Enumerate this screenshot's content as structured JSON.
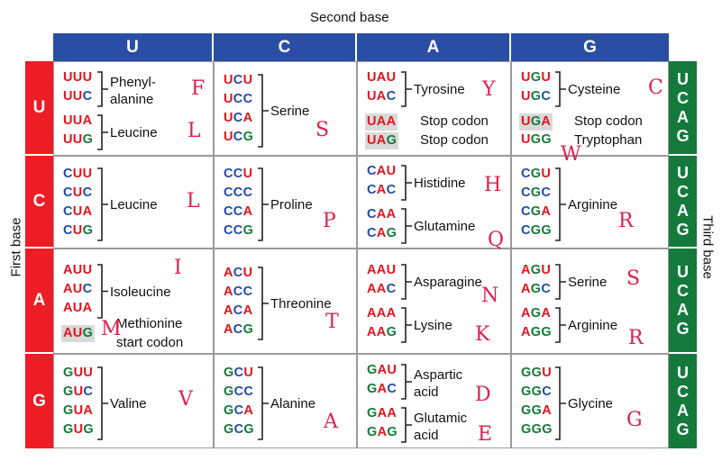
{
  "labels": {
    "second_base": "Second base",
    "first_base": "First base",
    "third_base": "Third base"
  },
  "second_bases": [
    "U",
    "C",
    "A",
    "G"
  ],
  "first_bases": [
    "U",
    "C",
    "A",
    "G"
  ],
  "third_bases": [
    "U",
    "C",
    "A",
    "G"
  ],
  "colors": {
    "U": "#e3141e",
    "C": "#1f4aa8",
    "A": "#e3141e",
    "G": "#147a3a"
  },
  "cells": [
    [
      {
        "groups": [
          {
            "codons": [
              "UUU",
              "UUC"
            ],
            "label": [
              "Phenyl-",
              "alanine"
            ],
            "bracket": true
          },
          {
            "codons": [
              "UUA",
              "UUG"
            ],
            "label": [
              "Leucine"
            ],
            "bracket": true
          }
        ],
        "letters": [
          "F",
          "L"
        ]
      },
      {
        "groups": [
          {
            "codons": [
              "UCU",
              "UCC",
              "UCA",
              "UCG"
            ],
            "label": [
              "Serine"
            ],
            "bracket": true
          }
        ],
        "letters": [
          "S"
        ]
      },
      {
        "groups": [
          {
            "codons": [
              "UAU",
              "UAC"
            ],
            "label": [
              "Tyrosine"
            ],
            "bracket": true
          },
          {
            "codons": [
              "UAA",
              "UAG"
            ],
            "label": [
              "Stop codon",
              "Stop codon"
            ],
            "bracket": false,
            "highlight": [
              true,
              true
            ]
          }
        ],
        "letters": [
          "Y"
        ]
      },
      {
        "groups": [
          {
            "codons": [
              "UGU",
              "UGC"
            ],
            "label": [
              "Cysteine"
            ],
            "bracket": true
          },
          {
            "codons": [
              "UGA",
              "UGG"
            ],
            "label": [
              "Stop codon",
              "Tryptophan"
            ],
            "bracket": false,
            "highlight": [
              true,
              false
            ]
          }
        ],
        "letters": [
          "C",
          "W"
        ]
      }
    ],
    [
      {
        "groups": [
          {
            "codons": [
              "CUU",
              "CUC",
              "CUA",
              "CUG"
            ],
            "label": [
              "Leucine"
            ],
            "bracket": true
          }
        ],
        "letters": [
          "L"
        ]
      },
      {
        "groups": [
          {
            "codons": [
              "CCU",
              "CCC",
              "CCA",
              "CCG"
            ],
            "label": [
              "Proline"
            ],
            "bracket": true
          }
        ],
        "letters": [
          "P"
        ]
      },
      {
        "groups": [
          {
            "codons": [
              "CAU",
              "CAC"
            ],
            "label": [
              "Histidine"
            ],
            "bracket": true
          },
          {
            "codons": [
              "CAA",
              "CAG"
            ],
            "label": [
              "Glutamine"
            ],
            "bracket": true
          }
        ],
        "letters": [
          "H",
          "Q"
        ]
      },
      {
        "groups": [
          {
            "codons": [
              "CGU",
              "CGC",
              "CGA",
              "CGG"
            ],
            "label": [
              "Arginine"
            ],
            "bracket": true
          }
        ],
        "letters": [
          "R"
        ]
      }
    ],
    [
      {
        "groups": [
          {
            "codons": [
              "AUU",
              "AUC",
              "AUA"
            ],
            "label": [
              "Isoleucine"
            ],
            "bracket": true
          },
          {
            "codons": [
              "AUG"
            ],
            "label": [
              "Methionine",
              "start codon"
            ],
            "bracket": false,
            "highlight": [
              true
            ]
          }
        ],
        "letters": [
          "I",
          "M"
        ]
      },
      {
        "groups": [
          {
            "codons": [
              "ACU",
              "ACC",
              "ACA",
              "ACG"
            ],
            "label": [
              "Threonine"
            ],
            "bracket": true
          }
        ],
        "letters": [
          "T"
        ]
      },
      {
        "groups": [
          {
            "codons": [
              "AAU",
              "AAC"
            ],
            "label": [
              "Asparagine"
            ],
            "bracket": true
          },
          {
            "codons": [
              "AAA",
              "AAG"
            ],
            "label": [
              "Lysine"
            ],
            "bracket": true
          }
        ],
        "letters": [
          "N",
          "K"
        ]
      },
      {
        "groups": [
          {
            "codons": [
              "AGU",
              "AGC"
            ],
            "label": [
              "Serine"
            ],
            "bracket": true
          },
          {
            "codons": [
              "AGA",
              "AGG"
            ],
            "label": [
              "Arginine"
            ],
            "bracket": true
          }
        ],
        "letters": [
          "S",
          "R"
        ]
      }
    ],
    [
      {
        "groups": [
          {
            "codons": [
              "GUU",
              "GUC",
              "GUA",
              "GUG"
            ],
            "label": [
              "Valine"
            ],
            "bracket": true
          }
        ],
        "letters": [
          "V"
        ]
      },
      {
        "groups": [
          {
            "codons": [
              "GCU",
              "GCC",
              "GCA",
              "GCG"
            ],
            "label": [
              "Alanine"
            ],
            "bracket": true
          }
        ],
        "letters": [
          "A"
        ]
      },
      {
        "groups": [
          {
            "codons": [
              "GAU",
              "GAC"
            ],
            "label": [
              "Aspartic",
              "acid"
            ],
            "bracket": true
          },
          {
            "codons": [
              "GAA",
              "GAG"
            ],
            "label": [
              "Glutamic",
              "acid"
            ],
            "bracket": true
          }
        ],
        "letters": [
          "D",
          "E"
        ]
      },
      {
        "groups": [
          {
            "codons": [
              "GGU",
              "GGC",
              "GGA",
              "GGG"
            ],
            "label": [
              "Glycine"
            ],
            "bracket": true
          }
        ],
        "letters": [
          "G"
        ]
      }
    ]
  ]
}
